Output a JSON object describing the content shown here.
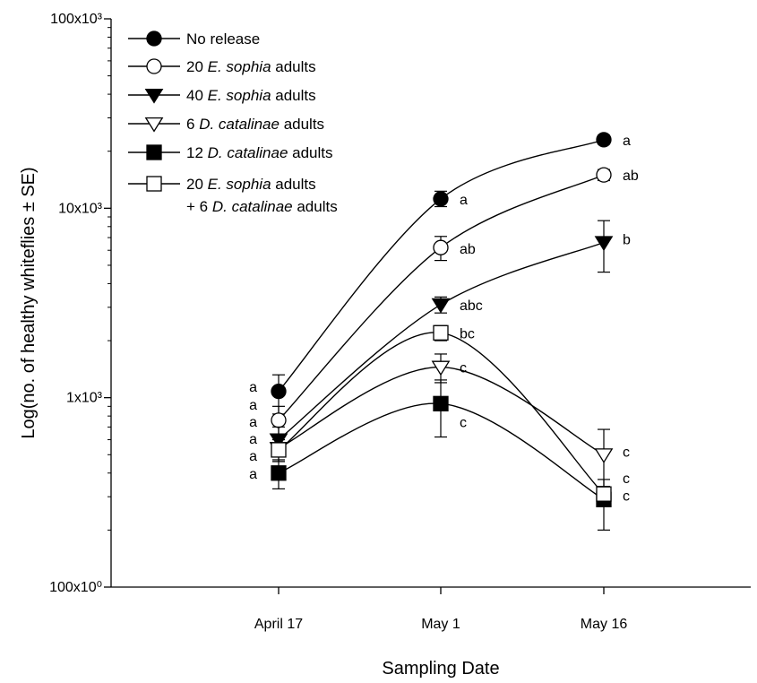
{
  "chart_data": {
    "type": "line",
    "xlabel": "Sampling Date",
    "ylabel": "Log(no. of healthy whiteflies ± SE)",
    "yscale": "log",
    "ylim": [
      100,
      100000
    ],
    "grid": false,
    "legend_position": "top-left",
    "categories": [
      "April 17",
      "May 1",
      "May 16"
    ],
    "yticks": [
      {
        "value": 100,
        "label": "100x10⁰"
      },
      {
        "value": 1000,
        "label": "1x10³"
      },
      {
        "value": 10000,
        "label": "10x10³"
      },
      {
        "value": 100000,
        "label": "100x10³"
      }
    ],
    "series": [
      {
        "name": "No release",
        "legend_parts": [
          [
            "No release",
            false
          ]
        ],
        "marker": "circle",
        "filled": true,
        "values": [
          1080,
          11200,
          23000
        ],
        "error": [
          [
            820,
            1320
          ],
          [
            10200,
            12300
          ],
          [
            21800,
            24300
          ]
        ],
        "labels": [
          "a",
          "a",
          "a"
        ]
      },
      {
        "name": "20 E. sophia adults",
        "legend_parts": [
          [
            "20 ",
            false
          ],
          [
            "E. sophia",
            true
          ],
          [
            " adults",
            false
          ]
        ],
        "marker": "circle",
        "filled": false,
        "values": [
          760,
          6200,
          15000
        ],
        "error": [
          [
            620,
            900
          ],
          [
            5300,
            7100
          ],
          [
            14000,
            16000
          ]
        ],
        "labels": [
          "a",
          "ab",
          "ab"
        ]
      },
      {
        "name": "40 E. sophia adults",
        "legend_parts": [
          [
            "40 ",
            false
          ],
          [
            "E. sophia",
            true
          ],
          [
            " adults",
            false
          ]
        ],
        "marker": "triangle-down",
        "filled": true,
        "values": [
          600,
          3100,
          6600
        ],
        "error": [
          [
            500,
            700
          ],
          [
            2800,
            3400
          ],
          [
            4600,
            8600
          ]
        ],
        "labels": [
          "a",
          "abc",
          "b"
        ]
      },
      {
        "name": "6 D. catalinae adults",
        "legend_parts": [
          [
            "6 ",
            false
          ],
          [
            "D. catalinae",
            true
          ],
          [
            " adults",
            false
          ]
        ],
        "marker": "triangle-down",
        "filled": false,
        "values": [
          540,
          1450,
          500
        ],
        "error": [
          [
            460,
            620
          ],
          [
            1200,
            1700
          ],
          [
            320,
            680
          ]
        ],
        "labels": [
          "a",
          "c",
          "c"
        ]
      },
      {
        "name": "12 D. catalinae adults",
        "legend_parts": [
          [
            "12 ",
            false
          ],
          [
            "D. catalinae",
            true
          ],
          [
            " adults",
            false
          ]
        ],
        "marker": "square",
        "filled": true,
        "values": [
          400,
          930,
          290
        ],
        "error": [
          [
            330,
            470
          ],
          [
            620,
            1240
          ],
          [
            200,
            370
          ]
        ],
        "labels": [
          "a",
          "c",
          "c"
        ]
      },
      {
        "name": "20 E. sophia adults + 6 D. catalinae adults",
        "legend_parts": [
          [
            "20 ",
            false
          ],
          [
            "E. sophia",
            true
          ],
          [
            " adults",
            false
          ]
        ],
        "legend_parts_line2": [
          [
            "+ 6 ",
            false
          ],
          [
            "D. catalinae",
            true
          ],
          [
            " adults",
            false
          ]
        ],
        "marker": "square",
        "filled": false,
        "values": [
          530,
          2200,
          310
        ],
        "error": [
          [
            460,
            600
          ],
          [
            2000,
            2400
          ],
          [
            280,
            340
          ]
        ],
        "labels": [
          "a",
          "bc",
          "c"
        ]
      }
    ]
  }
}
